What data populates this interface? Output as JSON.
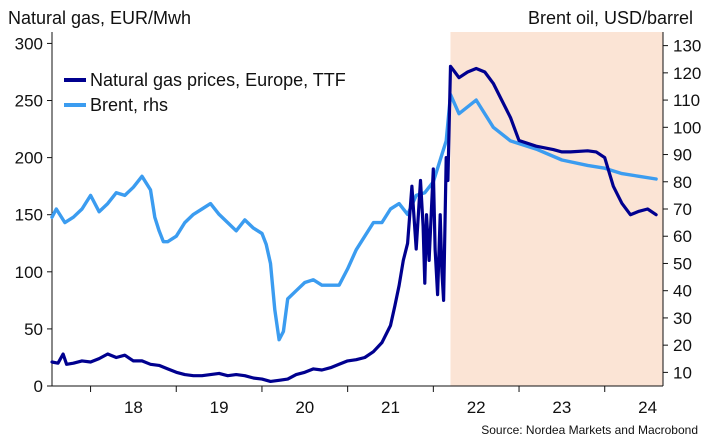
{
  "chart_data": {
    "type": "line",
    "title_left": "Natural gas, EUR/Mwh",
    "title_right": "Brent oil, USD/barrel",
    "source": "Source: Nordea Markets and Macrobond",
    "x_ticks": [
      "18",
      "19",
      "20",
      "21",
      "22",
      "23",
      "24"
    ],
    "xlim": [
      2017.55,
      2024.68
    ],
    "y_left": {
      "lim": [
        0,
        310
      ],
      "ticks": [
        "0",
        "50",
        "100",
        "150",
        "200",
        "250",
        "300"
      ]
    },
    "y_right": {
      "lim": [
        5,
        135
      ],
      "ticks": [
        "10",
        "20",
        "30",
        "40",
        "50",
        "60",
        "70",
        "80",
        "90",
        "100",
        "110",
        "120",
        "130"
      ]
    },
    "forecast_shading": {
      "from": 2022.2,
      "to": 2024.68,
      "color": "#fbe4d5"
    },
    "legend_position": "top-left",
    "series": [
      {
        "name": "Natural gas prices, Europe, TTF",
        "axis": "left",
        "color": "#00008f",
        "x": [
          2017.55,
          2017.62,
          2017.68,
          2017.72,
          2017.8,
          2017.9,
          2018.0,
          2018.1,
          2018.2,
          2018.3,
          2018.4,
          2018.5,
          2018.6,
          2018.7,
          2018.8,
          2018.9,
          2019.0,
          2019.1,
          2019.2,
          2019.3,
          2019.4,
          2019.5,
          2019.6,
          2019.7,
          2019.8,
          2019.9,
          2020.0,
          2020.1,
          2020.2,
          2020.3,
          2020.4,
          2020.5,
          2020.6,
          2020.7,
          2020.8,
          2020.9,
          2021.0,
          2021.1,
          2021.2,
          2021.3,
          2021.4,
          2021.5,
          2021.55,
          2021.6,
          2021.65,
          2021.7,
          2021.75,
          2021.8,
          2021.85,
          2021.88,
          2021.9,
          2021.92,
          2021.95,
          2022.0,
          2022.02,
          2022.05,
          2022.08,
          2022.1,
          2022.12,
          2022.15,
          2022.17,
          2022.2,
          2022.25,
          2022.3,
          2022.4,
          2022.5,
          2022.6,
          2022.7,
          2022.8,
          2022.9,
          2023.0,
          2023.2,
          2023.4,
          2023.5,
          2023.6,
          2023.8,
          2023.9,
          2024.0,
          2024.1,
          2024.2,
          2024.3,
          2024.4,
          2024.5,
          2024.6
        ],
        "y": [
          21,
          20,
          28,
          19,
          20,
          22,
          21,
          24,
          28,
          25,
          27,
          22,
          22,
          19,
          18,
          15,
          12,
          10,
          9,
          9,
          10,
          11,
          9,
          10,
          9,
          7,
          6,
          4,
          5,
          6,
          10,
          12,
          15,
          14,
          16,
          19,
          22,
          23,
          25,
          30,
          38,
          53,
          70,
          88,
          110,
          125,
          175,
          120,
          180,
          140,
          90,
          150,
          110,
          190,
          120,
          80,
          150,
          100,
          75,
          200,
          180,
          280,
          275,
          270,
          275,
          278,
          275,
          265,
          250,
          235,
          215,
          210,
          207,
          205,
          205,
          206,
          205,
          200,
          175,
          160,
          150,
          153,
          155,
          150
        ],
        "values_note": "read off left axis; high intra-period volatility approximated"
      },
      {
        "name": "Brent, rhs",
        "axis": "right",
        "color": "#3b9cf0",
        "x": [
          2017.55,
          2017.6,
          2017.7,
          2017.8,
          2017.9,
          2018.0,
          2018.1,
          2018.2,
          2018.3,
          2018.4,
          2018.5,
          2018.6,
          2018.7,
          2018.75,
          2018.8,
          2018.85,
          2018.9,
          2019.0,
          2019.1,
          2019.2,
          2019.3,
          2019.4,
          2019.5,
          2019.6,
          2019.7,
          2019.8,
          2019.9,
          2020.0,
          2020.05,
          2020.1,
          2020.15,
          2020.2,
          2020.25,
          2020.3,
          2020.4,
          2020.5,
          2020.6,
          2020.7,
          2020.8,
          2020.9,
          2021.0,
          2021.1,
          2021.2,
          2021.3,
          2021.4,
          2021.5,
          2021.6,
          2021.7,
          2021.8,
          2021.9,
          2022.0,
          2022.05,
          2022.1,
          2022.15,
          2022.2,
          2022.3,
          2022.5,
          2022.7,
          2022.9,
          2023.2,
          2023.5,
          2023.8,
          2024.0,
          2024.2,
          2024.4,
          2024.6
        ],
        "y": [
          67,
          70,
          65,
          67,
          70,
          75,
          69,
          72,
          76,
          75,
          78,
          82,
          77,
          67,
          62,
          58,
          58,
          60,
          65,
          68,
          70,
          72,
          68,
          65,
          62,
          66,
          63,
          61,
          57,
          50,
          33,
          22,
          25,
          37,
          40,
          43,
          44,
          42,
          42,
          42,
          48,
          55,
          60,
          65,
          65,
          70,
          72,
          68,
          75,
          76,
          80,
          85,
          90,
          95,
          112,
          105,
          110,
          100,
          95,
          92,
          88,
          86,
          85,
          83,
          82,
          81
        ],
        "values_note": "read off right axis; monthly approximation"
      }
    ]
  }
}
